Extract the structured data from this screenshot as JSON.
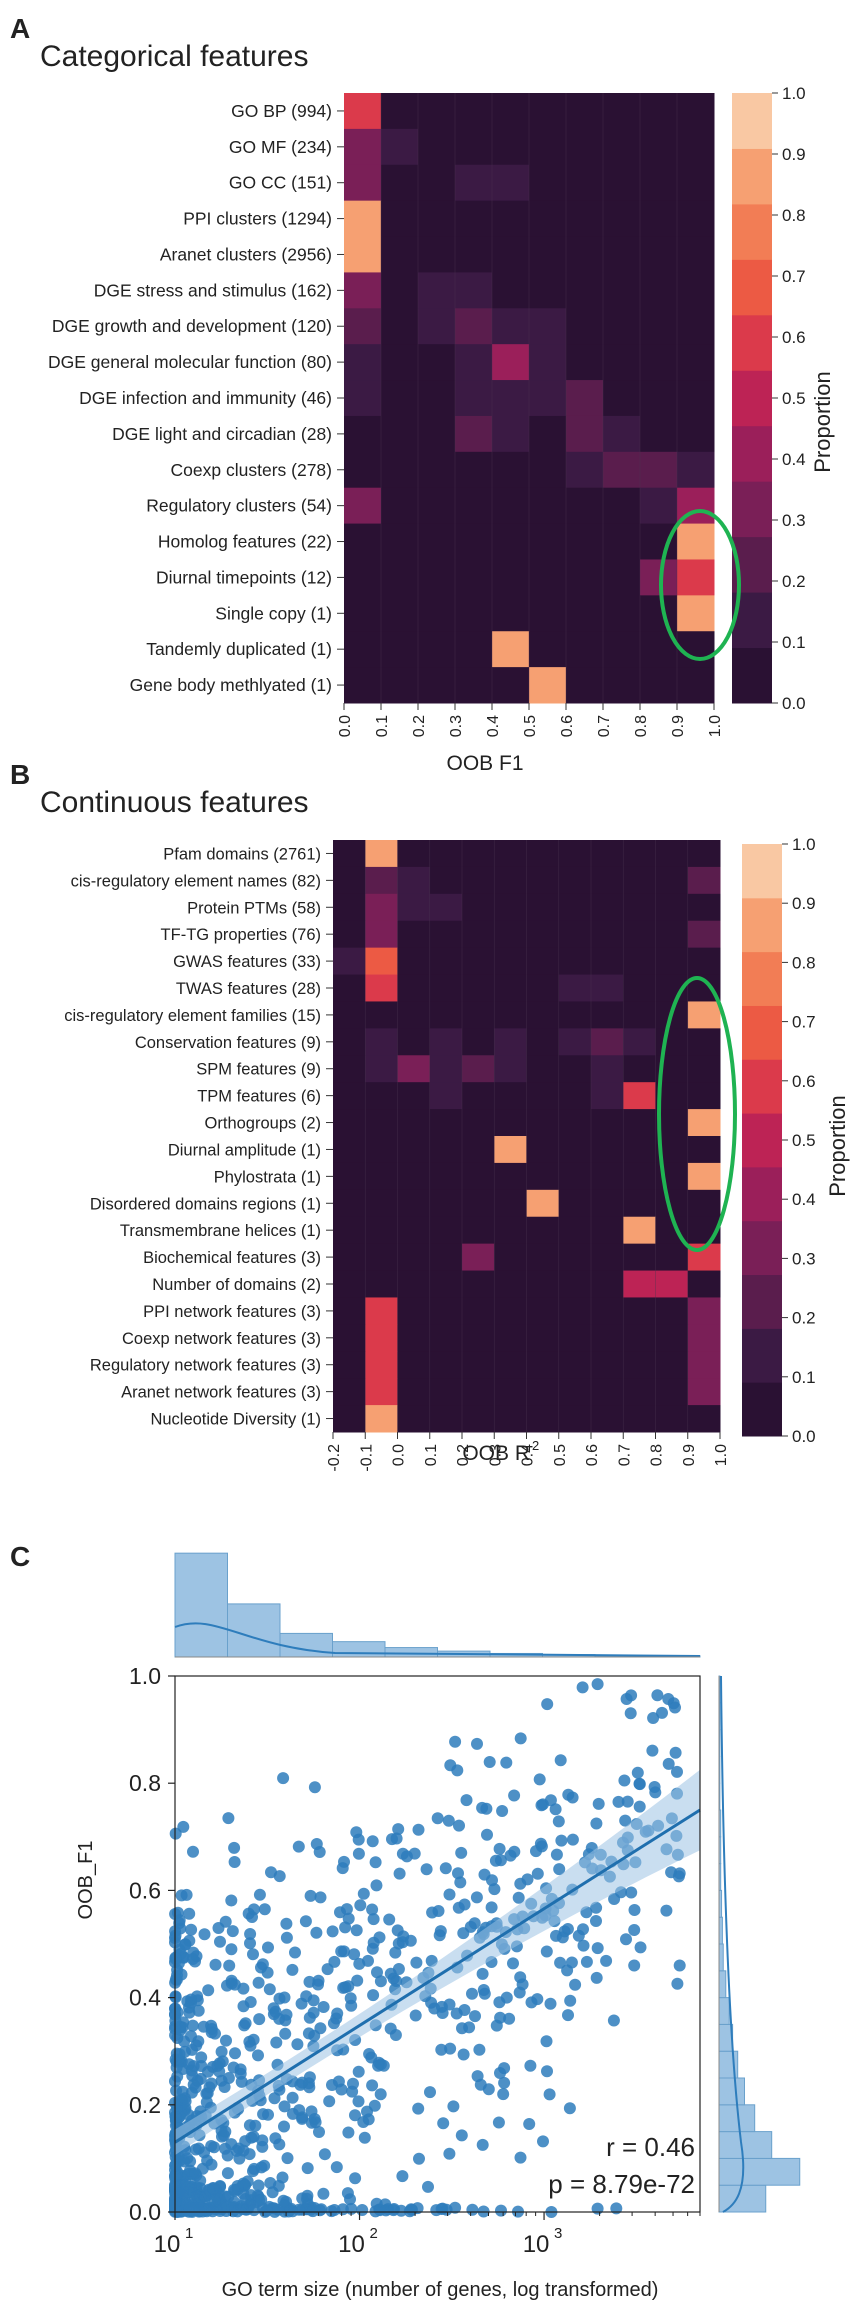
{
  "panels": {
    "a_letter": "A",
    "b_letter": "B",
    "c_letter": "C"
  },
  "colors": {
    "scale": [
      "#2a1133",
      "#3b1a44",
      "#5a1d4d",
      "#7a1f57",
      "#9b1f5a",
      "#bd2355",
      "#db3a4b",
      "#ec5a44",
      "#f27d55",
      "#f6a072",
      "#f9c8a3"
    ],
    "highlight": "#1fb352",
    "scatter": "#2e7dbc",
    "scatter_light": "#9dc3e3"
  },
  "chart_data": [
    {
      "type": "heatmap",
      "title": "Categorical features",
      "xlabel": "OOB F1",
      "x_bins": [
        "0.0–0.1",
        "0.1–0.2",
        "0.2–0.3",
        "0.3–0.4",
        "0.4–0.5",
        "0.5–0.6",
        "0.6–0.7",
        "0.7–0.8",
        "0.8–0.9",
        "0.9–1.0"
      ],
      "x_ticks": [
        "0.0",
        "0.1",
        "0.2",
        "0.3",
        "0.4",
        "0.5",
        "0.6",
        "0.7",
        "0.8",
        "0.9",
        "1.0"
      ],
      "rows": [
        "GO BP (994)",
        "GO MF (234)",
        "GO CC (151)",
        "PPI clusters (1294)",
        "Aranet clusters (2956)",
        "DGE stress and stimulus (162)",
        "DGE growth and development (120)",
        "DGE general molecular function (80)",
        "DGE infection and immunity (46)",
        "DGE light and circadian (28)",
        "Coexp clusters (278)",
        "Regulatory clusters (54)",
        "Homolog features (22)",
        "Diurnal timepoints (12)",
        "Single copy (1)",
        "Tandemly duplicated (1)",
        "Gene body methlyated (1)"
      ],
      "values": [
        [
          0.62,
          0.03,
          0.02,
          0.02,
          0.02,
          0.02,
          0.02,
          0.02,
          0.02,
          0.02
        ],
        [
          0.37,
          0.15,
          0.03,
          0.02,
          0.02,
          0.02,
          0.02,
          0.02,
          0.02,
          0.02
        ],
        [
          0.32,
          0.04,
          0.05,
          0.13,
          0.13,
          0.02,
          0.02,
          0.02,
          0.02,
          0.02
        ],
        [
          0.95,
          0.02,
          0.02,
          0.02,
          0.02,
          0.02,
          0.02,
          0.02,
          0.02,
          0.02
        ],
        [
          0.95,
          0.02,
          0.02,
          0.02,
          0.02,
          0.02,
          0.02,
          0.02,
          0.02,
          0.02
        ],
        [
          0.32,
          0.03,
          0.12,
          0.16,
          0.05,
          0.03,
          0.02,
          0.02,
          0.02,
          0.02
        ],
        [
          0.22,
          0.04,
          0.12,
          0.25,
          0.18,
          0.12,
          0.02,
          0.02,
          0.02,
          0.02
        ],
        [
          0.17,
          0.03,
          0.05,
          0.17,
          0.4,
          0.18,
          0.03,
          0.02,
          0.02,
          0.02
        ],
        [
          0.15,
          0.03,
          0.03,
          0.13,
          0.15,
          0.15,
          0.2,
          0.03,
          0.02,
          0.02
        ],
        [
          0.04,
          0.03,
          0.03,
          0.25,
          0.15,
          0.03,
          0.2,
          0.12,
          0.02,
          0.02
        ],
        [
          0.07,
          0.04,
          0.04,
          0.04,
          0.04,
          0.04,
          0.15,
          0.22,
          0.23,
          0.13
        ],
        [
          0.3,
          0.03,
          0.03,
          0.03,
          0.03,
          0.03,
          0.03,
          0.03,
          0.15,
          0.4
        ],
        [
          0.02,
          0.02,
          0.02,
          0.02,
          0.02,
          0.02,
          0.02,
          0.02,
          0.02,
          0.95
        ],
        [
          0.02,
          0.02,
          0.02,
          0.02,
          0.02,
          0.02,
          0.02,
          0.02,
          0.32,
          0.62
        ],
        [
          0.02,
          0.02,
          0.02,
          0.02,
          0.02,
          0.02,
          0.02,
          0.02,
          0.02,
          0.95
        ],
        [
          0.02,
          0.02,
          0.02,
          0.02,
          0.95,
          0.02,
          0.02,
          0.02,
          0.02,
          0.02
        ],
        [
          0.02,
          0.02,
          0.02,
          0.02,
          0.02,
          0.95,
          0.02,
          0.02,
          0.02,
          0.02
        ]
      ],
      "colorbar_label": "Proportion",
      "colorbar_ticks": [
        "0.0",
        "0.1",
        "0.2",
        "0.3",
        "0.4",
        "0.5",
        "0.6",
        "0.7",
        "0.8",
        "0.9",
        "1.0"
      ],
      "highlight": "ellipse around the 0.9–1.0 column for Regulatory clusters to Single copy"
    },
    {
      "type": "heatmap",
      "title": "Continuous features",
      "xlabel": "OOB R",
      "xlabel_sup": "2",
      "x_bins": [
        "-0.2–-0.1",
        "-0.1–0.0",
        "0.0–0.1",
        "0.1–0.2",
        "0.2–0.3",
        "0.3–0.4",
        "0.4–0.5",
        "0.5–0.6",
        "0.6–0.7",
        "0.7–0.8",
        "0.8–0.9",
        "0.9–1.0"
      ],
      "x_ticks": [
        "-0.2",
        "-0.1",
        "0.0",
        "0.1",
        "0.2",
        "0.3",
        "0.4",
        "0.5",
        "0.6",
        "0.7",
        "0.8",
        "0.9",
        "1.0"
      ],
      "rows": [
        "Pfam domains (2761)",
        "cis-regulatory element names (82)",
        "Protein PTMs (58)",
        "TF-TG properties (76)",
        "GWAS features (33)",
        "TWAS features (28)",
        "cis-regulatory element families (15)",
        "Conservation features (9)",
        "SPM features (9)",
        "TPM features (6)",
        "Orthogroups (2)",
        "Diurnal amplitude (1)",
        "Phylostrata (1)",
        "Disordered domains regions (1)",
        "Transmembrane helices (1)",
        "Biochemical features (3)",
        "Number of domains (2)",
        "PPI network features (3)",
        "Coexp network features (3)",
        "Regulatory network features (3)",
        "Aranet network features (3)",
        "Nucleotide Diversity (1)"
      ],
      "values": [
        [
          0.02,
          0.95,
          0.02,
          0.02,
          0.02,
          0.02,
          0.02,
          0.02,
          0.02,
          0.02,
          0.02,
          0.02
        ],
        [
          0.02,
          0.22,
          0.12,
          0.04,
          0.02,
          0.02,
          0.02,
          0.02,
          0.02,
          0.02,
          0.02,
          0.22
        ],
        [
          0.02,
          0.3,
          0.1,
          0.1,
          0.02,
          0.02,
          0.02,
          0.02,
          0.02,
          0.02,
          0.02,
          0.02
        ],
        [
          0.02,
          0.32,
          0.02,
          0.02,
          0.02,
          0.02,
          0.02,
          0.02,
          0.02,
          0.02,
          0.02,
          0.22
        ],
        [
          0.12,
          0.78,
          0.02,
          0.02,
          0.02,
          0.02,
          0.02,
          0.02,
          0.02,
          0.02,
          0.02,
          0.02
        ],
        [
          0.02,
          0.62,
          0.02,
          0.02,
          0.02,
          0.02,
          0.02,
          0.13,
          0.13,
          0.02,
          0.02,
          0.02
        ],
        [
          0.02,
          0.02,
          0.02,
          0.02,
          0.02,
          0.02,
          0.02,
          0.02,
          0.02,
          0.02,
          0.02,
          0.92
        ],
        [
          0.02,
          0.12,
          0.02,
          0.13,
          0.02,
          0.12,
          0.02,
          0.12,
          0.2,
          0.12,
          0.02,
          0.02
        ],
        [
          0.02,
          0.12,
          0.3,
          0.12,
          0.22,
          0.12,
          0.02,
          0.02,
          0.12,
          0.02,
          0.02,
          0.02
        ],
        [
          0.02,
          0.02,
          0.02,
          0.13,
          0.02,
          0.02,
          0.02,
          0.02,
          0.13,
          0.62,
          0.02,
          0.02
        ],
        [
          0.02,
          0.02,
          0.02,
          0.02,
          0.02,
          0.02,
          0.02,
          0.02,
          0.02,
          0.02,
          0.02,
          0.95
        ],
        [
          0.02,
          0.02,
          0.02,
          0.02,
          0.02,
          0.95,
          0.02,
          0.02,
          0.02,
          0.02,
          0.02,
          0.02
        ],
        [
          0.02,
          0.02,
          0.02,
          0.02,
          0.02,
          0.02,
          0.02,
          0.02,
          0.02,
          0.02,
          0.02,
          0.95
        ],
        [
          0.02,
          0.02,
          0.02,
          0.02,
          0.02,
          0.02,
          0.95,
          0.02,
          0.02,
          0.02,
          0.02,
          0.02
        ],
        [
          0.02,
          0.02,
          0.02,
          0.02,
          0.02,
          0.02,
          0.02,
          0.02,
          0.02,
          0.95,
          0.02,
          0.02
        ],
        [
          0.02,
          0.02,
          0.02,
          0.02,
          0.32,
          0.02,
          0.02,
          0.02,
          0.02,
          0.02,
          0.02,
          0.62
        ],
        [
          0.02,
          0.02,
          0.02,
          0.02,
          0.02,
          0.02,
          0.02,
          0.02,
          0.02,
          0.55,
          0.55,
          0.02
        ],
        [
          0.02,
          0.65,
          0.02,
          0.02,
          0.02,
          0.02,
          0.02,
          0.02,
          0.02,
          0.02,
          0.02,
          0.3
        ],
        [
          0.02,
          0.65,
          0.02,
          0.02,
          0.02,
          0.02,
          0.02,
          0.02,
          0.02,
          0.02,
          0.02,
          0.3
        ],
        [
          0.02,
          0.65,
          0.02,
          0.02,
          0.02,
          0.02,
          0.02,
          0.02,
          0.02,
          0.02,
          0.02,
          0.3
        ],
        [
          0.02,
          0.65,
          0.02,
          0.02,
          0.02,
          0.02,
          0.02,
          0.02,
          0.02,
          0.02,
          0.02,
          0.3
        ],
        [
          0.02,
          0.95,
          0.02,
          0.02,
          0.02,
          0.02,
          0.02,
          0.02,
          0.02,
          0.02,
          0.02,
          0.02
        ]
      ],
      "colorbar_label": "Proportion",
      "colorbar_ticks": [
        "0.0",
        "0.1",
        "0.2",
        "0.3",
        "0.4",
        "0.5",
        "0.6",
        "0.7",
        "0.8",
        "0.9",
        "1.0"
      ],
      "highlight": "ellipse around the 0.9–1.0 column for cis-regulatory element families to Number of domains"
    },
    {
      "type": "scatter",
      "xlabel": "GO term size (number of genes, log transformed)",
      "ylabel": "OOB_F1",
      "xscale": "log",
      "xlim": [
        10,
        7000
      ],
      "ylim": [
        0,
        1.0
      ],
      "x_ticks": [
        {
          "base": "10",
          "exp": "1",
          "value": 10
        },
        {
          "base": "10",
          "exp": "2",
          "value": 100
        },
        {
          "base": "10",
          "exp": "3",
          "value": 1000
        }
      ],
      "y_ticks": [
        "0.0",
        "0.2",
        "0.4",
        "0.6",
        "0.8",
        "1.0"
      ],
      "n_points": 994,
      "point_sampling": "approximate cloud, denser toward small term sizes and low OOB_F1",
      "regression": {
        "x": [
          10,
          7000
        ],
        "y": [
          0.13,
          0.75
        ]
      },
      "stats": {
        "r": "r = 0.46",
        "p": "p = 8.79e-72"
      },
      "top_histogram": [
        0.88,
        0.45,
        0.2,
        0.13,
        0.08,
        0.05,
        0.03,
        0.02,
        0.01,
        0.01
      ],
      "right_histogram": [
        0.55,
        0.95,
        0.62,
        0.42,
        0.3,
        0.22,
        0.16,
        0.12,
        0.08,
        0.05,
        0.04,
        0.03,
        0.02,
        0.02,
        0.02,
        0.01,
        0.01,
        0.01,
        0.01,
        0.01
      ]
    }
  ]
}
